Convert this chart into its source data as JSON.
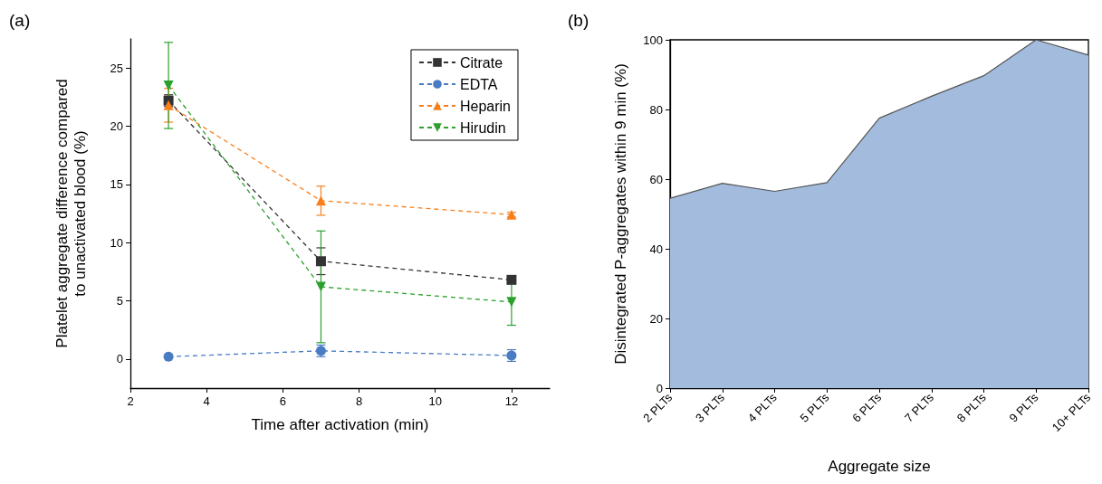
{
  "chart_data": [
    {
      "type": "line",
      "title": "(a)",
      "xlabel": "Time after activation (min)",
      "ylabel": "Platelet aggregate difference compared to unactivated blood (%)",
      "xlim": [
        2,
        13
      ],
      "xticks": [
        2,
        4,
        6,
        8,
        10,
        12
      ],
      "ylim": [
        -2.5,
        27.5
      ],
      "yticks": [
        0,
        5,
        10,
        15,
        20,
        25
      ],
      "x": [
        3,
        7,
        12
      ],
      "line_style": "dashed",
      "legend": "top right",
      "grid": false,
      "series": [
        {
          "name": "Citrate",
          "color": "#333333",
          "marker": "square",
          "values": [
            22.2,
            8.4,
            6.8
          ],
          "errors": [
            0.5,
            1.15,
            null
          ]
        },
        {
          "name": "EDTA",
          "color": "#4a7cc4",
          "marker": "circle",
          "values": [
            0.2,
            0.7,
            0.3
          ],
          "errors": [
            null,
            0.5,
            0.5
          ]
        },
        {
          "name": "Heparin",
          "color": "#f7801c",
          "marker": "triangle",
          "values": [
            21.8,
            13.6,
            12.4
          ],
          "errors": [
            1.45,
            1.25,
            0.2
          ]
        },
        {
          "name": "Hirudin",
          "color": "#2ca02c",
          "marker": "triangle-down",
          "values": [
            23.5,
            6.2,
            4.9
          ],
          "errors": [
            3.7,
            4.8,
            2
          ]
        }
      ]
    },
    {
      "type": "area",
      "title": "(b)",
      "xlabel": "Aggregate size",
      "ylabel": "Disintegrated P-aggregates within 9 min (%)",
      "categories": [
        "2 PLTs",
        "3 PLTs",
        "4 PLTs",
        "5 PLTs",
        "6 PLTs",
        "7 PLTs",
        "8 PLTs",
        "9 PLTs",
        "10+ PLTs"
      ],
      "ylim": [
        0,
        100
      ],
      "yticks": [
        0,
        20,
        40,
        60,
        80,
        100
      ],
      "grid": false,
      "legend": false,
      "series": [
        {
          "color": "#a3bcdd",
          "values": [
            54.5,
            58.8,
            56.5,
            59,
            77.5,
            83.8,
            89.7,
            100,
            95.6
          ]
        }
      ]
    }
  ]
}
